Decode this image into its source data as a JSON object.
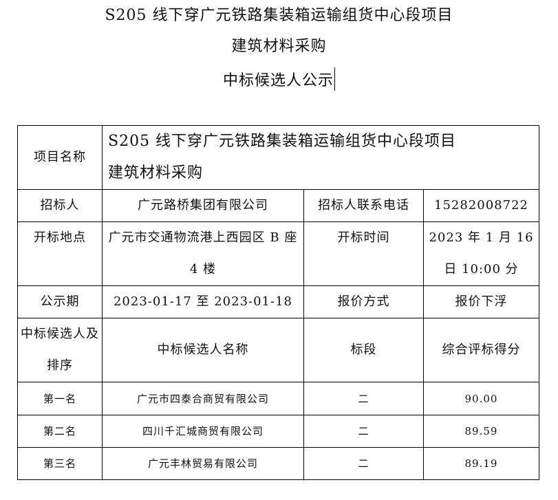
{
  "title": {
    "line1": "S205 线下穿广元铁路集装箱运输组货中心段项目",
    "line2": "建筑材料采购",
    "line3": "中标候选人公示"
  },
  "table": {
    "project_label": "项目名称",
    "project_value_line1": "S205 线下穿广元铁路集装箱运输组货中心段项目",
    "project_value_line2": "建筑材料采购",
    "tenderer_label": "招标人",
    "tenderer_value": "广元路桥集团有限公司",
    "phone_label": "招标人联系电话",
    "phone_value": "15282008722",
    "location_label": "开标地点",
    "location_value": "广元市交通物流港上西园区 B 座 4 楼",
    "time_label": "开标时间",
    "time_value": "2023 年 1 月 16 日 10:00 分",
    "period_label": "公示期",
    "period_value": "2023-01-17 至 2023-01-18",
    "quote_label": "报价方式",
    "quote_value": "报价下浮",
    "candidates_label": "中标候选人及排序",
    "col_name": "中标候选人名称",
    "col_section": "标段",
    "col_score": "综合评标得分",
    "candidates": [
      {
        "rank": "第一名",
        "name": "广元市四泰合商贸有限公司",
        "section": "二",
        "score": "90.00"
      },
      {
        "rank": "第二名",
        "name": "四川千汇城商贸有限公司",
        "section": "二",
        "score": "89.59"
      },
      {
        "rank": "第三名",
        "name": "广元丰林贸易有限公司",
        "section": "二",
        "score": "89.19"
      }
    ]
  }
}
